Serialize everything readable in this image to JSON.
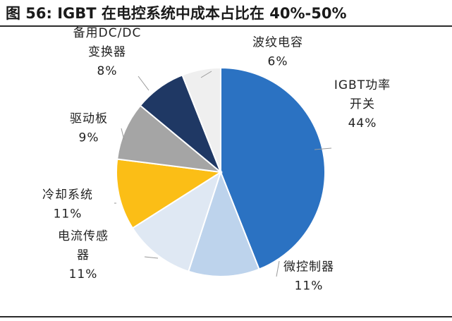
{
  "figure_title": "图 56: IGBT 在电控系统中成本占比在 40%-50%",
  "chart_data": {
    "type": "pie",
    "title": "图 56: IGBT 在电控系统中成本占比在 40%-50%",
    "slices": [
      {
        "label_lines": [
          "IGBT功率",
          "开关"
        ],
        "value_label": "44%",
        "value": 44,
        "color": "#2b72c2"
      },
      {
        "label_lines": [
          "微控制器"
        ],
        "value_label": "11%",
        "value": 11,
        "color": "#bdd3ec"
      },
      {
        "label_lines": [
          "电流传感",
          "器"
        ],
        "value_label": "11%",
        "value": 11,
        "color": "#dfe8f3"
      },
      {
        "label_lines": [
          "冷却系统"
        ],
        "value_label": "11%",
        "value": 11,
        "color": "#fbbe16"
      },
      {
        "label_lines": [
          "驱动板"
        ],
        "value_label": "9%",
        "value": 9,
        "color": "#a5a5a5"
      },
      {
        "label_lines": [
          "备用DC/DC",
          "变换器"
        ],
        "value_label": "8%",
        "value": 8,
        "color": "#1f3864"
      },
      {
        "label_lines": [
          "波纹电容"
        ],
        "value_label": "6%",
        "value": 6,
        "color": "#efefef"
      }
    ]
  }
}
